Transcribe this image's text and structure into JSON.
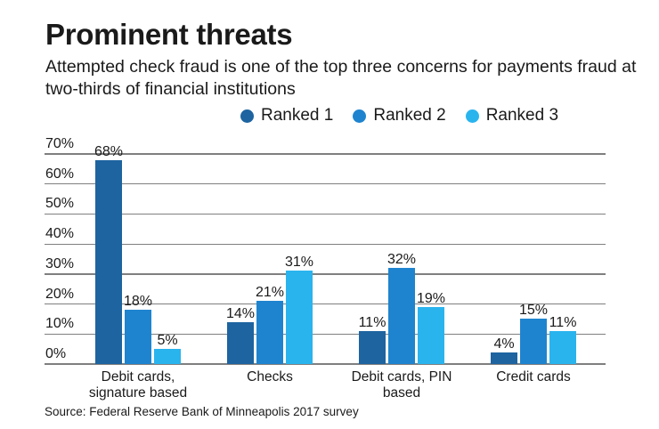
{
  "header": {
    "title": "Prominent threats",
    "subtitle": "Attempted check fraud is one of the top three concerns for payments fraud at two-thirds of financial institutions"
  },
  "legend": [
    {
      "label": "Ranked 1",
      "color": "#1d64a0"
    },
    {
      "label": "Ranked 2",
      "color": "#1e84cf"
    },
    {
      "label": "Ranked 3",
      "color": "#29b4ee"
    }
  ],
  "source": "Source: Federal Reserve Bank of Minneapolis 2017 survey",
  "chart_data": {
    "type": "bar",
    "title": "Prominent threats",
    "subtitle": "Attempted check fraud is one of the top three concerns for payments fraud at two-thirds of financial institutions",
    "categories": [
      "Debit cards, signature based",
      "Checks",
      "Debit cards, PIN based",
      "Credit cards"
    ],
    "category_lines": [
      [
        "Debit cards,",
        "signature based"
      ],
      [
        "Checks"
      ],
      [
        "Debit cards, PIN",
        "based"
      ],
      [
        "Credit cards"
      ]
    ],
    "series": [
      {
        "name": "Ranked 1",
        "color": "#1d64a0",
        "values": [
          68,
          14,
          11,
          4
        ]
      },
      {
        "name": "Ranked 2",
        "color": "#1e84cf",
        "values": [
          18,
          21,
          32,
          15
        ]
      },
      {
        "name": "Ranked 3",
        "color": "#29b4ee",
        "values": [
          5,
          31,
          19,
          11
        ]
      }
    ],
    "value_labels": [
      [
        "68%",
        "14%",
        "11%",
        "4%"
      ],
      [
        "18%",
        "21%",
        "32%",
        "15%"
      ],
      [
        "5%",
        "31%",
        "19%",
        "11%"
      ]
    ],
    "xlabel": "",
    "ylabel": "",
    "ylim": [
      0,
      70
    ],
    "yticks": [
      "0%",
      "10%",
      "20%",
      "30%",
      "40%",
      "50%",
      "60%",
      "70%"
    ],
    "grid": true,
    "legend_position": "top-right",
    "source": "Source: Federal Reserve Bank of Minneapolis 2017 survey"
  }
}
